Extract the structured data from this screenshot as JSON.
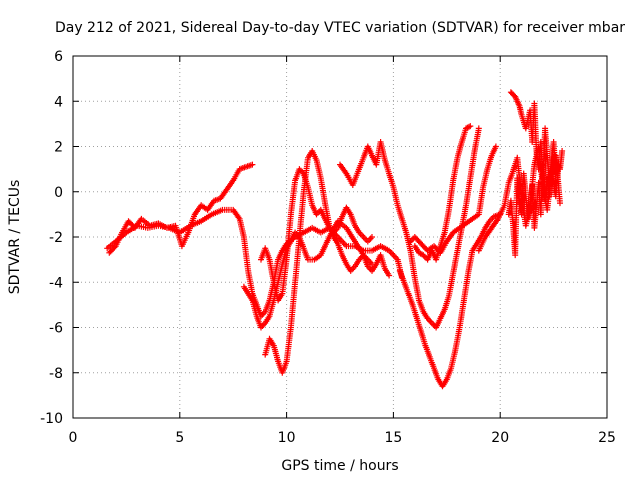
{
  "chart_data": {
    "type": "scatter",
    "title": "Day 212 of 2021, Sidereal Day-to-day VTEC variation (SDTVAR) for receiver mbar",
    "xlabel": "GPS time / hours",
    "ylabel": "SDTVAR / TECUs",
    "xlim": [
      0,
      25
    ],
    "ylim": [
      -10,
      6
    ],
    "xticks": [
      "0",
      "5",
      "10",
      "15",
      "20",
      "25"
    ],
    "yticks": [
      "6",
      "4",
      "2",
      "0",
      "-2",
      "-4",
      "-6",
      "-8",
      "-10"
    ],
    "grid": true,
    "marker": "plus",
    "color": "#ff0000",
    "series": [
      {
        "points": [
          [
            1.6,
            -2.5
          ],
          [
            2.0,
            -2.2
          ],
          [
            2.5,
            -1.8
          ],
          [
            3.0,
            -1.5
          ],
          [
            3.5,
            -1.6
          ],
          [
            4.0,
            -1.5
          ],
          [
            4.5,
            -1.6
          ],
          [
            5.0,
            -1.8
          ],
          [
            5.5,
            -1.5
          ],
          [
            6.0,
            -1.3
          ],
          [
            6.5,
            -1.0
          ],
          [
            7.0,
            -0.8
          ],
          [
            7.5,
            -0.8
          ],
          [
            7.8,
            -1.2
          ],
          [
            8.0,
            -2.0
          ],
          [
            8.2,
            -3.5
          ],
          [
            8.4,
            -4.5
          ],
          [
            8.6,
            -5.0
          ],
          [
            8.8,
            -5.5
          ],
          [
            9.0,
            -5.3
          ],
          [
            9.2,
            -4.8
          ],
          [
            9.4,
            -4.0
          ],
          [
            9.6,
            -3.0
          ],
          [
            9.8,
            -2.6
          ],
          [
            10.0,
            -2.3
          ],
          [
            10.4,
            -2.0
          ],
          [
            10.8,
            -1.8
          ],
          [
            11.2,
            -1.6
          ],
          [
            11.6,
            -1.8
          ],
          [
            12.0,
            -1.6
          ],
          [
            12.4,
            -2.0
          ],
          [
            12.8,
            -2.4
          ],
          [
            13.2,
            -2.4
          ],
          [
            13.6,
            -2.6
          ],
          [
            14.0,
            -2.6
          ],
          [
            14.4,
            -2.4
          ],
          [
            14.8,
            -2.6
          ],
          [
            15.2,
            -3.0
          ],
          [
            15.4,
            -3.8
          ]
        ]
      },
      {
        "points": [
          [
            1.7,
            -2.7
          ],
          [
            2.0,
            -2.4
          ],
          [
            2.3,
            -1.8
          ],
          [
            2.6,
            -1.3
          ],
          [
            2.9,
            -1.6
          ],
          [
            3.2,
            -1.2
          ],
          [
            3.6,
            -1.5
          ],
          [
            4.0,
            -1.4
          ],
          [
            4.4,
            -1.6
          ],
          [
            4.8,
            -1.5
          ],
          [
            5.1,
            -2.4
          ],
          [
            5.4,
            -1.8
          ],
          [
            5.7,
            -1.0
          ],
          [
            6.0,
            -0.6
          ],
          [
            6.3,
            -0.8
          ],
          [
            6.6,
            -0.4
          ],
          [
            6.9,
            -0.3
          ],
          [
            7.2,
            0.1
          ],
          [
            7.5,
            0.5
          ],
          [
            7.8,
            1.0
          ],
          [
            8.1,
            1.1
          ],
          [
            8.4,
            1.2
          ]
        ]
      },
      {
        "points": [
          [
            8.0,
            -4.2
          ],
          [
            8.2,
            -4.5
          ],
          [
            8.4,
            -4.8
          ],
          [
            8.6,
            -5.5
          ],
          [
            8.8,
            -6.0
          ],
          [
            9.0,
            -5.8
          ],
          [
            9.2,
            -5.5
          ],
          [
            9.4,
            -4.8
          ],
          [
            9.6,
            -4.0
          ],
          [
            9.8,
            -3.2
          ],
          [
            10.0,
            -2.5
          ],
          [
            10.2,
            -2.2
          ],
          [
            10.4,
            -1.8
          ],
          [
            10.6,
            -2.0
          ],
          [
            10.8,
            -2.5
          ],
          [
            11.0,
            -3.0
          ],
          [
            11.3,
            -3.0
          ],
          [
            11.6,
            -2.8
          ],
          [
            12.0,
            -2.0
          ],
          [
            12.4,
            -1.3
          ],
          [
            12.8,
            -1.6
          ],
          [
            13.2,
            -2.2
          ],
          [
            13.6,
            -2.8
          ],
          [
            14.0,
            -3.2
          ]
        ]
      },
      {
        "points": [
          [
            9.0,
            -7.2
          ],
          [
            9.2,
            -6.5
          ],
          [
            9.4,
            -6.8
          ],
          [
            9.6,
            -7.5
          ],
          [
            9.8,
            -8.0
          ],
          [
            10.0,
            -7.5
          ],
          [
            10.2,
            -6.0
          ],
          [
            10.4,
            -4.0
          ],
          [
            10.6,
            -2.0
          ],
          [
            10.8,
            0.0
          ],
          [
            11.0,
            1.5
          ],
          [
            11.2,
            1.8
          ],
          [
            11.4,
            1.4
          ],
          [
            11.6,
            0.6
          ],
          [
            11.8,
            -0.5
          ],
          [
            12.0,
            -1.5
          ],
          [
            12.2,
            -2.0
          ],
          [
            12.4,
            -2.3
          ],
          [
            12.6,
            -2.8
          ],
          [
            12.8,
            -3.2
          ],
          [
            13.0,
            -3.5
          ],
          [
            13.2,
            -3.3
          ],
          [
            13.4,
            -3.0
          ],
          [
            13.6,
            -2.8
          ],
          [
            13.8,
            -3.3
          ],
          [
            14.0,
            -3.5
          ],
          [
            14.2,
            -3.2
          ],
          [
            14.4,
            -2.8
          ],
          [
            14.6,
            -3.4
          ],
          [
            14.8,
            -3.7
          ]
        ]
      },
      {
        "points": [
          [
            8.8,
            -3.0
          ],
          [
            9.0,
            -2.5
          ],
          [
            9.2,
            -3.0
          ],
          [
            9.4,
            -4.0
          ],
          [
            9.6,
            -4.8
          ],
          [
            9.8,
            -4.5
          ],
          [
            10.0,
            -3.0
          ],
          [
            10.2,
            -1.0
          ],
          [
            10.4,
            0.5
          ],
          [
            10.6,
            1.0
          ],
          [
            10.8,
            0.8
          ],
          [
            11.0,
            0.2
          ],
          [
            11.2,
            -0.6
          ],
          [
            11.4,
            -1.0
          ],
          [
            11.6,
            -0.8
          ],
          [
            11.8,
            -1.2
          ],
          [
            12.0,
            -1.6
          ],
          [
            12.2,
            -1.8
          ],
          [
            12.4,
            -1.6
          ],
          [
            12.6,
            -1.1
          ],
          [
            12.8,
            -0.7
          ],
          [
            13.0,
            -1.0
          ],
          [
            13.2,
            -1.5
          ],
          [
            13.4,
            -1.8
          ],
          [
            13.6,
            -2.0
          ],
          [
            13.8,
            -2.2
          ],
          [
            14.0,
            -2.0
          ]
        ]
      },
      {
        "points": [
          [
            12.5,
            1.2
          ],
          [
            12.8,
            0.8
          ],
          [
            13.1,
            0.3
          ],
          [
            13.6,
            1.5
          ],
          [
            13.8,
            2.0
          ],
          [
            14.0,
            1.6
          ],
          [
            14.2,
            1.2
          ],
          [
            14.4,
            2.2
          ],
          [
            14.6,
            1.4
          ],
          [
            14.8,
            0.8
          ],
          [
            15.0,
            0.2
          ],
          [
            15.2,
            -0.6
          ],
          [
            15.4,
            -1.2
          ],
          [
            15.6,
            -1.8
          ],
          [
            15.8,
            -2.6
          ],
          [
            16.0,
            -3.8
          ],
          [
            16.2,
            -4.8
          ],
          [
            16.4,
            -5.3
          ],
          [
            16.6,
            -5.6
          ],
          [
            16.8,
            -5.8
          ],
          [
            17.0,
            -6.0
          ],
          [
            17.2,
            -5.6
          ],
          [
            17.4,
            -5.2
          ],
          [
            17.6,
            -4.6
          ],
          [
            17.8,
            -3.6
          ],
          [
            18.0,
            -2.6
          ],
          [
            18.2,
            -1.6
          ],
          [
            18.4,
            -0.6
          ],
          [
            18.6,
            0.6
          ],
          [
            18.8,
            1.8
          ],
          [
            19.0,
            2.8
          ]
        ]
      },
      {
        "points": [
          [
            15.3,
            -3.5
          ],
          [
            15.5,
            -4.0
          ],
          [
            15.7,
            -4.5
          ],
          [
            15.9,
            -5.0
          ],
          [
            16.1,
            -5.6
          ],
          [
            16.3,
            -6.2
          ],
          [
            16.5,
            -6.8
          ],
          [
            16.7,
            -7.3
          ],
          [
            16.9,
            -7.8
          ],
          [
            17.1,
            -8.3
          ],
          [
            17.3,
            -8.6
          ],
          [
            17.5,
            -8.3
          ],
          [
            17.7,
            -7.8
          ],
          [
            17.9,
            -7.0
          ],
          [
            18.1,
            -6.0
          ],
          [
            18.3,
            -4.8
          ],
          [
            18.5,
            -3.6
          ],
          [
            18.7,
            -2.6
          ],
          [
            18.9,
            -2.3
          ],
          [
            19.1,
            -2.0
          ],
          [
            19.3,
            -1.6
          ],
          [
            19.5,
            -1.3
          ],
          [
            19.7,
            -1.1
          ],
          [
            20.0,
            -1.0
          ]
        ]
      },
      {
        "points": [
          [
            16.0,
            -2.4
          ],
          [
            16.2,
            -2.7
          ],
          [
            16.4,
            -2.8
          ],
          [
            16.6,
            -3.0
          ],
          [
            16.8,
            -2.6
          ],
          [
            17.0,
            -3.0
          ],
          [
            17.2,
            -2.4
          ],
          [
            17.4,
            -1.8
          ],
          [
            17.6,
            -0.8
          ],
          [
            17.8,
            0.5
          ],
          [
            18.0,
            1.5
          ],
          [
            18.2,
            2.2
          ],
          [
            18.4,
            2.8
          ],
          [
            18.6,
            2.9
          ]
        ]
      },
      {
        "points": [
          [
            15.8,
            -2.2
          ],
          [
            16.0,
            -2.0
          ],
          [
            16.3,
            -2.3
          ],
          [
            16.6,
            -2.6
          ],
          [
            16.9,
            -2.4
          ],
          [
            17.2,
            -2.7
          ],
          [
            17.5,
            -2.2
          ],
          [
            17.8,
            -1.8
          ],
          [
            18.1,
            -1.6
          ],
          [
            18.4,
            -1.4
          ],
          [
            18.7,
            -1.2
          ],
          [
            19.0,
            -1.0
          ],
          [
            19.2,
            0.2
          ],
          [
            19.4,
            1.0
          ],
          [
            19.6,
            1.6
          ],
          [
            19.8,
            2.0
          ]
        ]
      },
      {
        "points": [
          [
            19.0,
            -2.6
          ],
          [
            19.3,
            -2.0
          ],
          [
            19.6,
            -1.6
          ],
          [
            19.9,
            -1.2
          ],
          [
            20.2,
            -0.6
          ],
          [
            20.4,
            0.4
          ],
          [
            20.6,
            0.9
          ],
          [
            20.8,
            1.5
          ],
          [
            21.0,
            -0.2
          ],
          [
            21.2,
            -1.5
          ],
          [
            21.4,
            -0.6
          ],
          [
            21.6,
            1.2
          ],
          [
            21.8,
            2.0
          ],
          [
            22.0,
            0.2
          ],
          [
            22.2,
            -0.8
          ],
          [
            22.4,
            0.8
          ],
          [
            22.6,
            1.6
          ],
          [
            22.8,
            -0.5
          ]
        ]
      },
      {
        "points": [
          [
            20.5,
            4.4
          ],
          [
            20.6,
            4.3
          ],
          [
            20.7,
            4.2
          ],
          [
            20.8,
            4.0
          ],
          [
            20.9,
            3.8
          ],
          [
            21.0,
            3.4
          ],
          [
            21.2,
            2.8
          ],
          [
            21.4,
            3.6
          ],
          [
            21.5,
            2.2
          ],
          [
            21.6,
            3.9
          ],
          [
            21.7,
            1.8
          ],
          [
            21.8,
            1.0
          ],
          [
            21.9,
            2.2
          ],
          [
            22.0,
            0.6
          ],
          [
            22.1,
            2.8
          ],
          [
            22.2,
            1.6
          ],
          [
            22.3,
            0.4
          ],
          [
            22.4,
            1.4
          ],
          [
            22.5,
            2.2
          ],
          [
            22.6,
            0.8
          ],
          [
            22.7,
            1.2
          ],
          [
            22.8,
            1.0
          ],
          [
            22.9,
            1.8
          ]
        ]
      },
      {
        "points": [
          [
            20.4,
            -1.0
          ],
          [
            20.5,
            -0.4
          ],
          [
            20.6,
            -1.4
          ],
          [
            20.7,
            -2.8
          ],
          [
            20.8,
            0.6
          ],
          [
            20.9,
            -0.5
          ],
          [
            21.0,
            -1.0
          ],
          [
            21.1,
            0.8
          ],
          [
            21.2,
            -0.2
          ],
          [
            21.3,
            -1.2
          ],
          [
            21.4,
            -0.8
          ],
          [
            21.5,
            0.3
          ],
          [
            21.6,
            -1.6
          ],
          [
            21.7,
            -0.6
          ],
          [
            21.8,
            0.4
          ],
          [
            21.9,
            -1.0
          ],
          [
            22.0,
            1.2
          ],
          [
            22.1,
            -0.4
          ],
          [
            22.2,
            0.6
          ],
          [
            22.3,
            -0.2
          ],
          [
            22.4,
            1.4
          ],
          [
            22.5,
            0.4
          ],
          [
            22.6,
            -0.2
          ],
          [
            22.7,
            0.9
          ]
        ]
      }
    ]
  }
}
